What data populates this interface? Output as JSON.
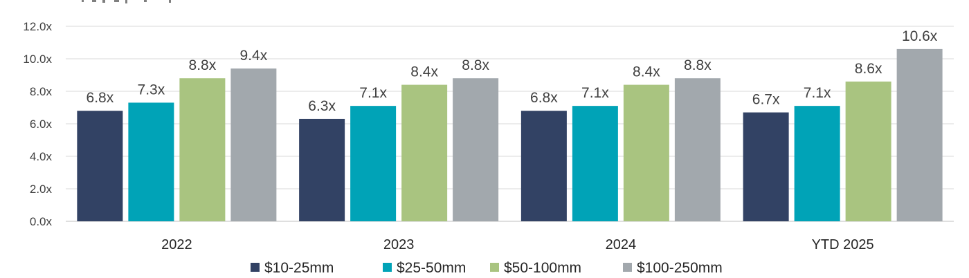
{
  "chart_data": {
    "type": "bar",
    "categories": [
      "2022",
      "2023",
      "2024",
      "YTD 2025"
    ],
    "series": [
      {
        "name": "$10-25mm",
        "color": "#324264",
        "values": [
          6.8,
          6.3,
          6.8,
          6.7
        ],
        "labels": [
          "6.8x",
          "6.3x",
          "6.8x",
          "6.7x"
        ]
      },
      {
        "name": "$25-50mm",
        "color": "#00A3B7",
        "values": [
          7.3,
          7.1,
          7.1,
          7.1
        ],
        "labels": [
          "7.3x",
          "7.1x",
          "7.1x",
          "7.1x"
        ]
      },
      {
        "name": "$50-100mm",
        "color": "#A9C480",
        "values": [
          8.8,
          8.4,
          8.4,
          8.6
        ],
        "labels": [
          "8.8x",
          "8.4x",
          "8.4x",
          "8.6x"
        ]
      },
      {
        "name": "$100-250mm",
        "color": "#A2A8AD",
        "values": [
          9.4,
          8.8,
          8.8,
          10.6
        ],
        "labels": [
          "9.4x",
          "8.8x",
          "8.8x",
          "10.6x"
        ]
      }
    ],
    "ylim": [
      0,
      12
    ],
    "yticks": [
      "0.0x",
      "2.0x",
      "4.0x",
      "6.0x",
      "8.0x",
      "10.0x",
      "12.0x"
    ],
    "grid": true,
    "legend_position": "bottom-center",
    "title": "",
    "xlabel": "",
    "ylabel": ""
  }
}
